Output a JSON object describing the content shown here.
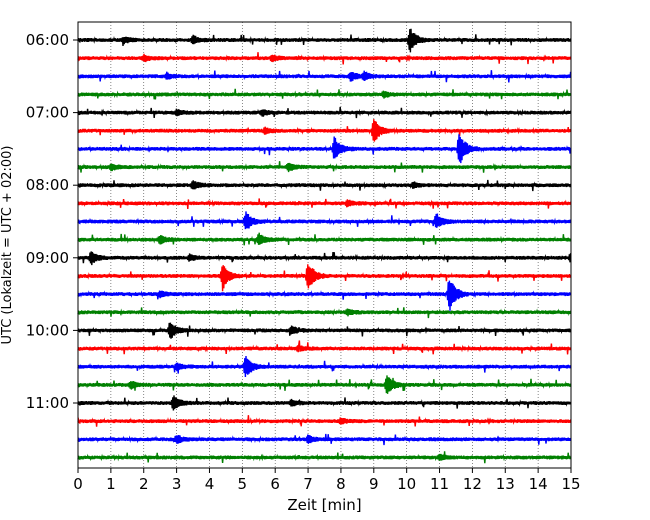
{
  "chart_data": {
    "type": "line",
    "title": "",
    "xlabel": "Zeit  [min]",
    "ylabel": "UTC (Lokalzeit = UTC + 02:00)",
    "xlim": [
      0,
      15
    ],
    "xticks": [
      0,
      1,
      2,
      3,
      4,
      5,
      6,
      7,
      8,
      9,
      10,
      11,
      12,
      13,
      14,
      15
    ],
    "xtick_labels": [
      "0",
      "1",
      "2",
      "3",
      "4",
      "5",
      "6",
      "7",
      "8",
      "9",
      "10",
      "11",
      "12",
      "13",
      "14",
      "15"
    ],
    "ytick_labels": [
      "06:00",
      "07:00",
      "08:00",
      "09:00",
      "10:00",
      "11:00"
    ],
    "ytick_trace_index": [
      0,
      4,
      8,
      12,
      16,
      20
    ],
    "vertical_grid": "dotted",
    "trace_colors": [
      "#000000",
      "#ff0000",
      "#0000ff",
      "#008000"
    ],
    "trace_minutes": 15,
    "traces": [
      {
        "start": "06:00",
        "events": [
          {
            "t": 10.1,
            "a": 12
          },
          {
            "t": 3.5,
            "a": 4
          },
          {
            "t": 1.4,
            "a": 3
          }
        ]
      },
      {
        "start": "06:15",
        "events": [
          {
            "t": 2.0,
            "a": 3
          },
          {
            "t": 5.9,
            "a": 3
          }
        ]
      },
      {
        "start": "06:30",
        "events": [
          {
            "t": 8.3,
            "a": 5
          },
          {
            "t": 8.7,
            "a": 4
          },
          {
            "t": 2.7,
            "a": 3
          }
        ]
      },
      {
        "start": "06:45",
        "events": [
          {
            "t": 9.3,
            "a": 3
          }
        ]
      },
      {
        "start": "07:00",
        "events": [
          {
            "t": 5.6,
            "a": 3
          },
          {
            "t": 3.0,
            "a": 3
          }
        ]
      },
      {
        "start": "07:15",
        "events": [
          {
            "t": 9.0,
            "a": 13
          },
          {
            "t": 5.7,
            "a": 3
          }
        ]
      },
      {
        "start": "07:30",
        "events": [
          {
            "t": 7.8,
            "a": 12
          },
          {
            "t": 11.6,
            "a": 18
          }
        ]
      },
      {
        "start": "07:45",
        "events": [
          {
            "t": 1.0,
            "a": 3
          },
          {
            "t": 6.4,
            "a": 4
          }
        ]
      },
      {
        "start": "08:00",
        "events": [
          {
            "t": 3.5,
            "a": 5
          },
          {
            "t": 10.2,
            "a": 3
          }
        ]
      },
      {
        "start": "08:15",
        "events": [
          {
            "t": 8.2,
            "a": 3
          }
        ]
      },
      {
        "start": "08:30",
        "events": [
          {
            "t": 5.1,
            "a": 10
          },
          {
            "t": 10.9,
            "a": 8
          }
        ]
      },
      {
        "start": "08:45",
        "events": [
          {
            "t": 2.5,
            "a": 4
          },
          {
            "t": 5.5,
            "a": 6
          }
        ]
      },
      {
        "start": "09:00",
        "events": [
          {
            "t": 0.4,
            "a": 7
          },
          {
            "t": 15.0,
            "a": 6
          },
          {
            "t": 3.4,
            "a": 3
          }
        ]
      },
      {
        "start": "09:15",
        "events": [
          {
            "t": 4.4,
            "a": 14
          },
          {
            "t": 7.0,
            "a": 16
          }
        ]
      },
      {
        "start": "09:30",
        "events": [
          {
            "t": 11.3,
            "a": 20
          },
          {
            "t": 2.5,
            "a": 3
          }
        ]
      },
      {
        "start": "09:45",
        "events": [
          {
            "t": 8.2,
            "a": 3
          }
        ]
      },
      {
        "start": "10:00",
        "events": [
          {
            "t": 2.8,
            "a": 9
          },
          {
            "t": 6.5,
            "a": 4
          }
        ]
      },
      {
        "start": "10:15",
        "events": [
          {
            "t": 6.7,
            "a": 3
          }
        ]
      },
      {
        "start": "10:30",
        "events": [
          {
            "t": 5.1,
            "a": 11
          },
          {
            "t": 3.0,
            "a": 3
          }
        ]
      },
      {
        "start": "10:45",
        "events": [
          {
            "t": 9.4,
            "a": 10
          },
          {
            "t": 1.6,
            "a": 4
          }
        ]
      },
      {
        "start": "11:00",
        "events": [
          {
            "t": 2.9,
            "a": 8
          },
          {
            "t": 6.5,
            "a": 3
          }
        ]
      },
      {
        "start": "11:15",
        "events": [
          {
            "t": 8.0,
            "a": 3
          }
        ]
      },
      {
        "start": "11:30",
        "events": [
          {
            "t": 3.0,
            "a": 4
          },
          {
            "t": 7.0,
            "a": 4
          }
        ]
      },
      {
        "start": "11:45",
        "events": [
          {
            "t": 11.0,
            "a": 3
          }
        ]
      }
    ]
  }
}
